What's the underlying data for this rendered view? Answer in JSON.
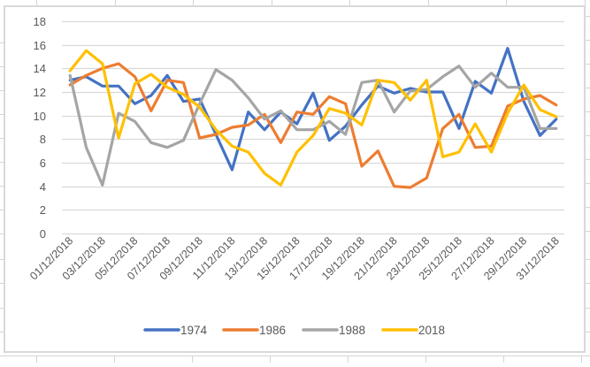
{
  "chart_data": {
    "type": "line",
    "title": "",
    "xlabel": "",
    "ylabel": "",
    "ylim": [
      0,
      18
    ],
    "yticks": [
      0,
      2,
      4,
      6,
      8,
      10,
      12,
      14,
      16,
      18
    ],
    "grid": true,
    "legend_position": "bottom",
    "categories": [
      "01/12/2018",
      "02/12/2018",
      "03/12/2018",
      "04/12/2018",
      "05/12/2018",
      "06/12/2018",
      "07/12/2018",
      "08/12/2018",
      "09/12/2018",
      "10/12/2018",
      "11/12/2018",
      "12/12/2018",
      "13/12/2018",
      "14/12/2018",
      "15/12/2018",
      "16/12/2018",
      "17/12/2018",
      "18/12/2018",
      "19/12/2018",
      "20/12/2018",
      "21/12/2018",
      "22/12/2018",
      "23/12/2018",
      "24/12/2018",
      "25/12/2018",
      "26/12/2018",
      "27/12/2018",
      "28/12/2018",
      "29/12/2018",
      "30/12/2018",
      "31/12/2018"
    ],
    "tick_labels": [
      "01/12/2018",
      "03/12/2018",
      "05/12/2018",
      "07/12/2018",
      "09/12/2018",
      "11/12/2018",
      "13/12/2018",
      "15/12/2018",
      "17/12/2018",
      "19/12/2018",
      "21/12/2018",
      "23/12/2018",
      "25/12/2018",
      "27/12/2018",
      "29/12/2018",
      "31/12/2018"
    ],
    "series": [
      {
        "name": "1974",
        "color": "#4472c4",
        "values": [
          13.0,
          13.3,
          12.5,
          12.5,
          11.0,
          11.7,
          13.4,
          11.2,
          11.4,
          8.4,
          5.4,
          10.3,
          8.8,
          10.3,
          9.3,
          11.9,
          7.9,
          9.1,
          10.9,
          12.5,
          11.9,
          12.3,
          12.0,
          12.0,
          8.9,
          12.9,
          11.9,
          15.7,
          11.2,
          8.3,
          9.7
        ]
      },
      {
        "name": "1986",
        "color": "#ed7d31",
        "values": [
          12.6,
          13.4,
          14.0,
          14.4,
          13.3,
          10.4,
          13.0,
          12.8,
          8.1,
          8.4,
          9.0,
          9.2,
          10.1,
          7.7,
          10.3,
          10.1,
          11.6,
          11.0,
          5.7,
          7.0,
          4.0,
          3.9,
          4.7,
          8.9,
          10.1,
          7.3,
          7.4,
          10.8,
          11.4,
          11.7,
          10.9
        ]
      },
      {
        "name": "1988",
        "color": "#a5a5a5",
        "values": [
          13.4,
          7.3,
          4.1,
          10.2,
          9.5,
          7.7,
          7.3,
          7.9,
          11.0,
          13.9,
          13.0,
          11.5,
          9.7,
          10.4,
          8.8,
          8.8,
          9.5,
          8.4,
          12.8,
          13.0,
          10.3,
          12.1,
          12.2,
          13.3,
          14.2,
          12.4,
          13.6,
          12.4,
          12.4,
          8.9,
          8.9
        ]
      },
      {
        "name": "2018",
        "color": "#ffc000",
        "values": [
          13.8,
          15.5,
          14.4,
          8.1,
          12.7,
          13.5,
          12.4,
          11.8,
          10.7,
          8.8,
          7.4,
          6.9,
          5.1,
          4.1,
          6.9,
          8.3,
          10.6,
          10.2,
          9.2,
          13.0,
          12.8,
          11.3,
          13.0,
          6.5,
          6.9,
          9.3,
          6.9,
          10.2,
          12.6,
          10.5,
          9.9
        ]
      }
    ]
  }
}
